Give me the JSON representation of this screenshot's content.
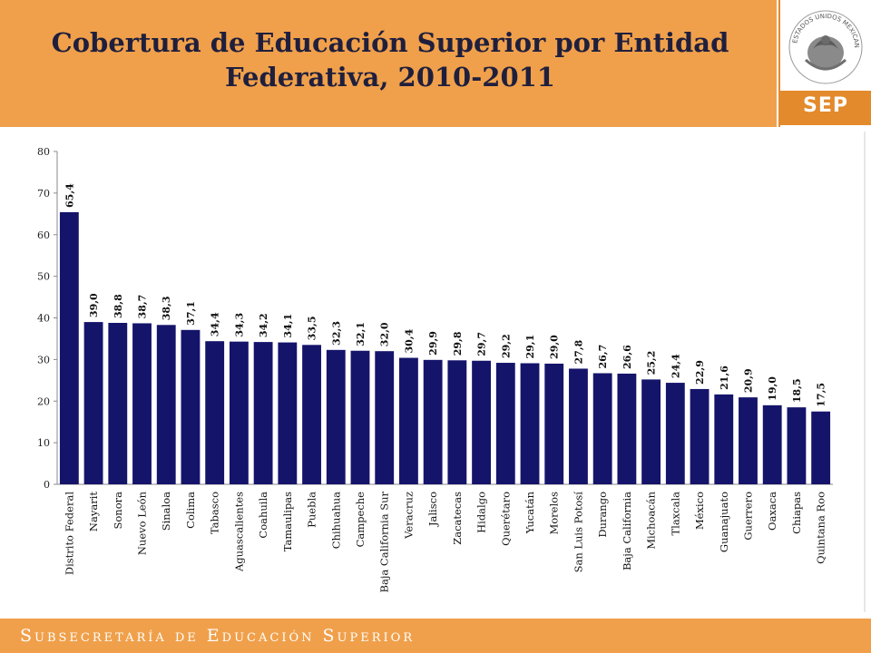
{
  "header": {
    "title_line1": "Cobertura de Educación Superior por Entidad",
    "title_line2": "Federativa, 2010-2011"
  },
  "logo": {
    "seal_text": "ESTADOS UNIDOS MEXICANOS",
    "agency": "SEP"
  },
  "footer": {
    "text": "Subsecretaría de Educación Superior"
  },
  "colors": {
    "header_bg": "#f0a04b",
    "accent_orange": "#e38a2c",
    "bar": "#15146b",
    "title_text": "#1f1f3d"
  },
  "chart_data": {
    "type": "bar",
    "title": "",
    "xlabel": "",
    "ylabel": "",
    "ylim": [
      0,
      80
    ],
    "yticks": [
      0,
      10,
      20,
      30,
      40,
      50,
      60,
      70,
      80
    ],
    "grid": false,
    "legend": "none",
    "categories": [
      "Distrito Federal",
      "Nayarit",
      "Sonora",
      "Nuevo León",
      "Sinaloa",
      "Colima",
      "Tabasco",
      "Aguascalientes",
      "Coahuila",
      "Tamaulipas",
      "Puebla",
      "Chihuahua",
      "Campeche",
      "Baja California Sur",
      "Veracruz",
      "Jalisco",
      "Zacatecas",
      "Hidalgo",
      "Querétaro",
      "Yucatán",
      "Morelos",
      "San Luis Potosí",
      "Durango",
      "Baja California",
      "Michoacán",
      "Tlaxcala",
      "México",
      "Guanajuato",
      "Guerrero",
      "Oaxaca",
      "Chiapas",
      "Quintana Roo"
    ],
    "values": [
      65.4,
      39.0,
      38.8,
      38.7,
      38.3,
      37.1,
      34.4,
      34.3,
      34.2,
      34.1,
      33.5,
      32.3,
      32.1,
      32.0,
      30.4,
      29.9,
      29.8,
      29.7,
      29.2,
      29.1,
      29.0,
      27.8,
      26.7,
      26.6,
      25.2,
      24.4,
      22.9,
      21.6,
      20.9,
      19.0,
      18.5,
      17.5
    ],
    "data_labels": [
      "65,4",
      "39,0",
      "38,8",
      "38,7",
      "38,3",
      "37,1",
      "34,4",
      "34,3",
      "34,2",
      "34,1",
      "33,5",
      "32,3",
      "32,1",
      "32,0",
      "30,4",
      "29,9",
      "29,8",
      "29,7",
      "29,2",
      "29,1",
      "29,0",
      "27,8",
      "26,7",
      "26,6",
      "25,2",
      "24,4",
      "22,9",
      "21,6",
      "20,9",
      "19,0",
      "18,5",
      "17,5"
    ]
  }
}
